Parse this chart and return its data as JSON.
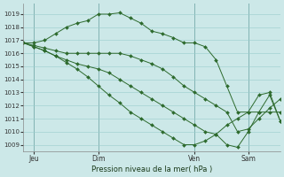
{
  "background_color": "#cce8e8",
  "grid_color": "#99cccc",
  "line_color": "#2d6a2d",
  "marker_color": "#2d6a2d",
  "xlabel": "Pression niveau de la mer( hPa )",
  "ylim": [
    1008.5,
    1019.8
  ],
  "yticks": [
    1009,
    1010,
    1011,
    1012,
    1013,
    1014,
    1015,
    1016,
    1017,
    1018,
    1019
  ],
  "xlim": [
    0,
    24
  ],
  "xtick_positions": [
    1,
    7,
    16,
    21
  ],
  "xtick_labels": [
    "Jeu",
    "Dim",
    "Ven",
    "Sam"
  ],
  "vlines": [
    1,
    7,
    16,
    21
  ],
  "lines": [
    {
      "x": [
        0,
        1,
        2,
        3,
        4,
        5,
        6,
        7,
        8,
        9,
        10,
        11,
        12,
        13,
        14,
        15,
        16,
        17,
        18,
        19,
        20,
        21,
        22,
        23,
        24
      ],
      "y": [
        1016.8,
        1016.8,
        1017.0,
        1017.5,
        1018.0,
        1018.3,
        1018.5,
        1019.0,
        1019.0,
        1019.1,
        1018.7,
        1018.3,
        1017.7,
        1017.5,
        1017.2,
        1016.8,
        1016.8,
        1016.5,
        1015.5,
        1013.5,
        1011.5,
        1011.5,
        1011.5,
        1011.5,
        1011.5
      ]
    },
    {
      "x": [
        0,
        1,
        2,
        3,
        4,
        5,
        6,
        7,
        8,
        9,
        10,
        11,
        12,
        13,
        14,
        15,
        16,
        17,
        18,
        19,
        20,
        21,
        22,
        23,
        24
      ],
      "y": [
        1016.8,
        1016.6,
        1016.4,
        1016.2,
        1016.0,
        1016.0,
        1016.0,
        1016.0,
        1016.0,
        1016.0,
        1015.8,
        1015.5,
        1015.2,
        1014.8,
        1014.2,
        1013.5,
        1013.0,
        1012.5,
        1012.0,
        1011.5,
        1010.0,
        1010.2,
        1011.0,
        1011.8,
        1012.5
      ]
    },
    {
      "x": [
        0,
        1,
        2,
        3,
        4,
        5,
        6,
        7,
        8,
        9,
        10,
        11,
        12,
        13,
        14,
        15,
        16,
        17,
        18,
        19,
        20,
        21,
        22,
        23,
        24
      ],
      "y": [
        1016.8,
        1016.5,
        1016.2,
        1015.8,
        1015.5,
        1015.2,
        1015.0,
        1014.8,
        1014.5,
        1014.0,
        1013.5,
        1013.0,
        1012.5,
        1012.0,
        1011.5,
        1011.0,
        1010.5,
        1010.0,
        1009.8,
        1009.0,
        1008.8,
        1010.0,
        1011.5,
        1012.8,
        1010.8
      ]
    },
    {
      "x": [
        0,
        1,
        2,
        3,
        4,
        5,
        6,
        7,
        8,
        9,
        10,
        11,
        12,
        13,
        14,
        15,
        16,
        17,
        18,
        19,
        20,
        21,
        22,
        23,
        24
      ],
      "y": [
        1016.8,
        1016.5,
        1016.2,
        1015.8,
        1015.3,
        1014.8,
        1014.2,
        1013.5,
        1012.8,
        1012.2,
        1011.5,
        1011.0,
        1010.5,
        1010.0,
        1009.5,
        1009.0,
        1009.0,
        1009.3,
        1009.8,
        1010.5,
        1011.0,
        1011.5,
        1012.8,
        1013.0,
        1010.8
      ]
    }
  ]
}
